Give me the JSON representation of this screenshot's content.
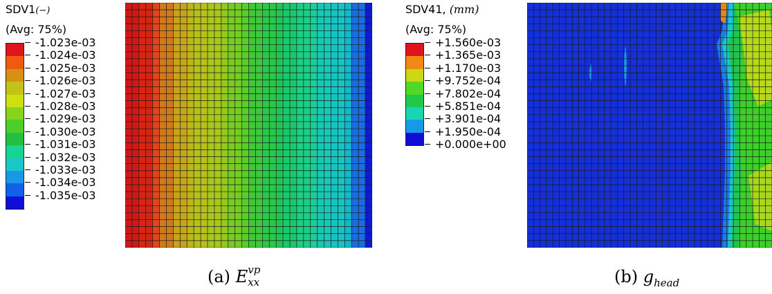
{
  "panel_a": {
    "variable": "SDV1",
    "unit": "(−)",
    "avg": "(Avg: 75%)",
    "legend_values": [
      "-1.023e-03",
      "-1.024e-03",
      "-1.025e-03",
      "-1.026e-03",
      "-1.027e-03",
      "-1.028e-03",
      "-1.029e-03",
      "-1.030e-03",
      "-1.031e-03",
      "-1.032e-03",
      "-1.033e-03",
      "-1.034e-03",
      "-1.035e-03"
    ],
    "legend_colors": [
      "#e0141c",
      "#f05a0f",
      "#d79016",
      "#c2c217",
      "#cce012",
      "#86d41c",
      "#4cd027",
      "#21c045",
      "#18d494",
      "#18c8c8",
      "#1a98e8",
      "#1160e8",
      "#0e0ed6"
    ],
    "caption_tag": "(a)",
    "caption_symbol": "E",
    "caption_sub": "xx",
    "caption_sup": "vp",
    "field_columns": [
      "#d01818",
      "#d82412",
      "#e0461a",
      "#d07a1c",
      "#c9a31a",
      "#bdb71c",
      "#b7c11a",
      "#a8c81c",
      "#94c91f",
      "#76cd22",
      "#56d028",
      "#3fc93a",
      "#2cc74a",
      "#22c456",
      "#1cc86b",
      "#1bcf85",
      "#19cf9a",
      "#18c8b4",
      "#16c4c4",
      "#13b8cf",
      "#1a6fe0",
      "#0f1ad2"
    ]
  },
  "panel_b": {
    "variable": "SDV41,",
    "unit": "(mm)",
    "avg": "(Avg: 75%)",
    "legend_values": [
      "+1.560e-03",
      "+1.365e-03",
      "+1.170e-03",
      "+9.752e-04",
      "+7.802e-04",
      "+5.851e-04",
      "+3.901e-04",
      "+1.950e-04",
      "+0.000e+00"
    ],
    "legend_colors": [
      "#e0141c",
      "#f08a14",
      "#ccd814",
      "#52d828",
      "#21c84a",
      "#18d6b4",
      "#1a98e8",
      "#0e0ed6"
    ],
    "caption_tag": "(b)",
    "caption_symbol": "g",
    "caption_sub": "head"
  }
}
